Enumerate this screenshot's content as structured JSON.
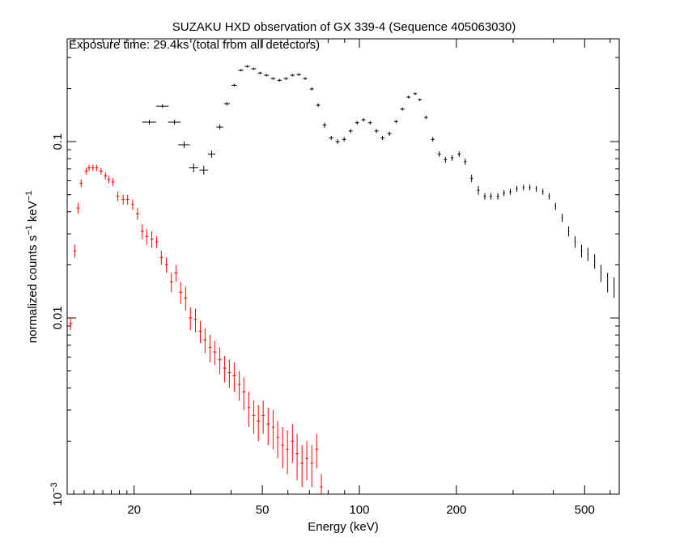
{
  "chart_data": {
    "type": "errorbar-scatter",
    "title": "SUZAKU HXD observation of GX 339-4 (Sequence 405063030)",
    "subtitle": "Exposure time: 29.4ks (total from all detectors)",
    "xlabel": "Energy (keV)",
    "ylabel": [
      "normalized counts s",
      "−1",
      " keV",
      "−1"
    ],
    "xscale": "log",
    "yscale": "log",
    "xlim": [
      12.4,
      640
    ],
    "ylim": [
      0.001,
      0.383
    ],
    "xticks": [
      20,
      50,
      100,
      200,
      500
    ],
    "xminorticks": [
      13,
      14,
      15,
      16,
      17,
      18,
      19,
      30,
      40,
      60,
      70,
      80,
      90,
      300,
      400,
      600
    ],
    "yticks": [
      {
        "value": 0.001,
        "label": "10",
        "exponent": "−3"
      },
      0.01,
      0.1
    ],
    "yminorticks": [
      0.002,
      0.003,
      0.004,
      0.005,
      0.006,
      0.007,
      0.008,
      0.009,
      0.02,
      0.03,
      0.04,
      0.05,
      0.06,
      0.07,
      0.08,
      0.09,
      0.2,
      0.3
    ],
    "series": [
      {
        "color": "#ff0000",
        "x": [
          12.7,
          13.1,
          13.4,
          13.7,
          14.2,
          14.5,
          14.9,
          15.3,
          15.8,
          16.3,
          16.7,
          17.2,
          17.8,
          18.5,
          19.1,
          19.8,
          20.5,
          21.2,
          21.9,
          22.7,
          23.5,
          24.3,
          25.2,
          26.1,
          27.0,
          27.9,
          28.9,
          29.9,
          31.0,
          32.1,
          33.2,
          34.4,
          35.6,
          36.9,
          38.2,
          39.5,
          40.9,
          42.4,
          43.8,
          45.4,
          47.0,
          48.6,
          50.3,
          52.1,
          54.0,
          55.8,
          57.8,
          59.8,
          62.0,
          64.1,
          66.4,
          68.7,
          71.2,
          73.7,
          76.2
        ],
        "xerr": [
          0.15,
          0.15,
          0.15,
          0.15,
          0.15,
          0.15,
          0.15,
          0.15,
          0.2,
          0.2,
          0.2,
          0.2,
          0.2,
          0.2,
          0.2,
          0.2,
          0.25,
          0.25,
          0.25,
          0.25,
          0.25,
          0.25,
          0.25,
          0.25,
          0.35,
          0.35,
          0.35,
          0.35,
          0.35,
          0.35,
          0.35,
          0.35,
          0.45,
          0.45,
          0.45,
          0.45,
          0.45,
          0.45,
          0.45,
          0.45,
          0.55,
          0.55,
          0.55,
          0.55,
          0.55,
          0.55,
          0.55,
          0.55,
          0.7,
          0.7,
          0.7,
          0.7,
          0.7,
          0.7,
          0.7
        ],
        "values": [
          0.0093,
          0.024,
          0.042,
          0.058,
          0.068,
          0.071,
          0.071,
          0.071,
          0.068,
          0.064,
          0.061,
          0.059,
          0.049,
          0.047,
          0.047,
          0.044,
          0.039,
          0.031,
          0.029,
          0.028,
          0.027,
          0.022,
          0.02,
          0.016,
          0.018,
          0.014,
          0.013,
          0.01,
          0.0098,
          0.0084,
          0.0075,
          0.0068,
          0.0064,
          0.0058,
          0.0052,
          0.0049,
          0.0047,
          0.0042,
          0.0038,
          0.0031,
          0.0028,
          0.0026,
          0.0028,
          0.0025,
          0.0024,
          0.0021,
          0.0019,
          0.0018,
          0.002,
          0.0017,
          0.0015,
          0.0016,
          0.0015,
          0.0018,
          0.0011
        ],
        "yerr": [
          0.0008,
          0.002,
          0.003,
          0.003,
          0.003,
          0.003,
          0.003,
          0.003,
          0.003,
          0.003,
          0.003,
          0.003,
          0.003,
          0.003,
          0.003,
          0.003,
          0.003,
          0.003,
          0.003,
          0.003,
          0.002,
          0.002,
          0.002,
          0.002,
          0.002,
          0.002,
          0.002,
          0.0015,
          0.0015,
          0.0012,
          0.0012,
          0.0012,
          0.001,
          0.001,
          0.0009,
          0.0009,
          0.0009,
          0.0008,
          0.0008,
          0.0007,
          0.0006,
          0.0006,
          0.0006,
          0.0006,
          0.0006,
          0.0005,
          0.0005,
          0.0005,
          0.0005,
          0.0005,
          0.0004,
          0.0004,
          0.0004,
          0.0004,
          0.0002
        ]
      },
      {
        "color": "#000000",
        "x": [
          22.3,
          24.5,
          26.7,
          28.6,
          30.6,
          32.9,
          34.8,
          36.9,
          38.8,
          40.9,
          42.9,
          44.9,
          47.0,
          49.2,
          51.5,
          54.0,
          56.5,
          59.2,
          62.0,
          64.9,
          67.9,
          71.2,
          74.5,
          78.0,
          81.8,
          85.6,
          89.7,
          94.0,
          98.4,
          103,
          108,
          113,
          118,
          124,
          130,
          136,
          142,
          149,
          154,
          161,
          169,
          177,
          185,
          194,
          204,
          213,
          223,
          234,
          245,
          256,
          269,
          281,
          294,
          308,
          323,
          338,
          354,
          371,
          388,
          406,
          426,
          446,
          467,
          489,
          512,
          537,
          562,
          589,
          617
        ],
        "xerr": [
          1.1,
          1.1,
          1.2,
          1.2,
          1.0,
          1.0,
          0.9,
          0.9,
          0.8,
          0.8,
          0.8,
          0.8,
          0.8,
          0.8,
          0.9,
          0.9,
          0.9,
          1,
          1,
          1,
          1,
          1,
          1,
          1,
          1.2,
          1.2,
          1.2,
          1.3,
          1.3,
          1.4,
          1.5,
          1.6,
          1.7,
          1.8,
          1.9,
          2,
          2,
          2,
          2,
          2,
          2,
          2,
          2,
          2,
          2,
          2,
          2,
          2,
          2,
          2,
          2,
          2,
          2,
          2,
          2,
          2,
          2,
          2,
          2,
          2,
          2,
          2,
          2,
          2,
          2,
          2,
          2,
          2,
          2
        ],
        "values": [
          0.129,
          0.159,
          0.129,
          0.096,
          0.071,
          0.069,
          0.085,
          0.121,
          0.164,
          0.209,
          0.254,
          0.267,
          0.259,
          0.245,
          0.238,
          0.228,
          0.223,
          0.228,
          0.238,
          0.24,
          0.228,
          0.199,
          0.161,
          0.124,
          0.105,
          0.1,
          0.103,
          0.115,
          0.128,
          0.133,
          0.128,
          0.115,
          0.105,
          0.111,
          0.13,
          0.153,
          0.179,
          0.187,
          0.173,
          0.137,
          0.103,
          0.085,
          0.079,
          0.081,
          0.085,
          0.077,
          0.062,
          0.053,
          0.049,
          0.049,
          0.049,
          0.051,
          0.052,
          0.054,
          0.055,
          0.055,
          0.054,
          0.052,
          0.049,
          0.043,
          0.037,
          0.031,
          0.027,
          0.024,
          0.023,
          0.021,
          0.018,
          0.016,
          0.015
        ],
        "yerr": [
          0.004,
          0.004,
          0.004,
          0.004,
          0.004,
          0.004,
          0.004,
          0.004,
          0.004,
          0.004,
          0.004,
          0.004,
          0.004,
          0.004,
          0.004,
          0.004,
          0.004,
          0.004,
          0.004,
          0.004,
          0.004,
          0.004,
          0.004,
          0.004,
          0.003,
          0.003,
          0.003,
          0.003,
          0.003,
          0.003,
          0.003,
          0.003,
          0.003,
          0.003,
          0.003,
          0.003,
          0.003,
          0.003,
          0.003,
          0.003,
          0.003,
          0.003,
          0.003,
          0.003,
          0.003,
          0.003,
          0.003,
          0.003,
          0.002,
          0.002,
          0.002,
          0.002,
          0.002,
          0.002,
          0.002,
          0.002,
          0.002,
          0.002,
          0.002,
          0.002,
          0.002,
          0.002,
          0.002,
          0.002,
          0.002,
          0.002,
          0.002,
          0.002,
          0.002
        ]
      }
    ]
  }
}
